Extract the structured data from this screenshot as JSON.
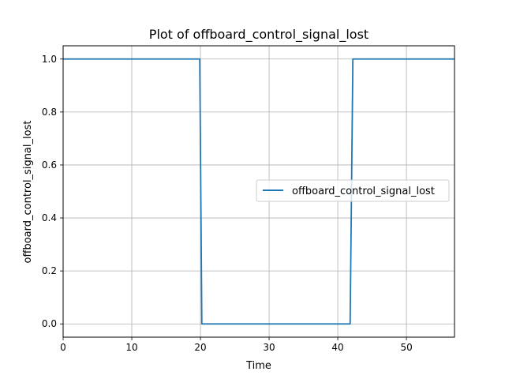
{
  "chart_data": {
    "type": "line",
    "title": "Plot of offboard_control_signal_lost",
    "xlabel": "Time",
    "ylabel": "offboard_control_signal_lost",
    "xlim": [
      0,
      57
    ],
    "ylim": [
      -0.05,
      1.05
    ],
    "x_ticks": [
      0,
      10,
      20,
      30,
      40,
      50
    ],
    "y_ticks": [
      0.0,
      0.2,
      0.4,
      0.6,
      0.8,
      1.0
    ],
    "x_tick_labels": [
      "0",
      "10",
      "20",
      "30",
      "40",
      "50"
    ],
    "y_tick_labels": [
      "0.0",
      "0.2",
      "0.4",
      "0.6",
      "0.8",
      "1.0"
    ],
    "grid": true,
    "legend_position": "center-right",
    "series": [
      {
        "name": "offboard_control_signal_lost",
        "color": "#1f77b4",
        "x": [
          0,
          19.9,
          20.2,
          41.8,
          42.2,
          57
        ],
        "y": [
          1,
          1,
          0,
          0,
          1,
          1
        ]
      }
    ]
  }
}
